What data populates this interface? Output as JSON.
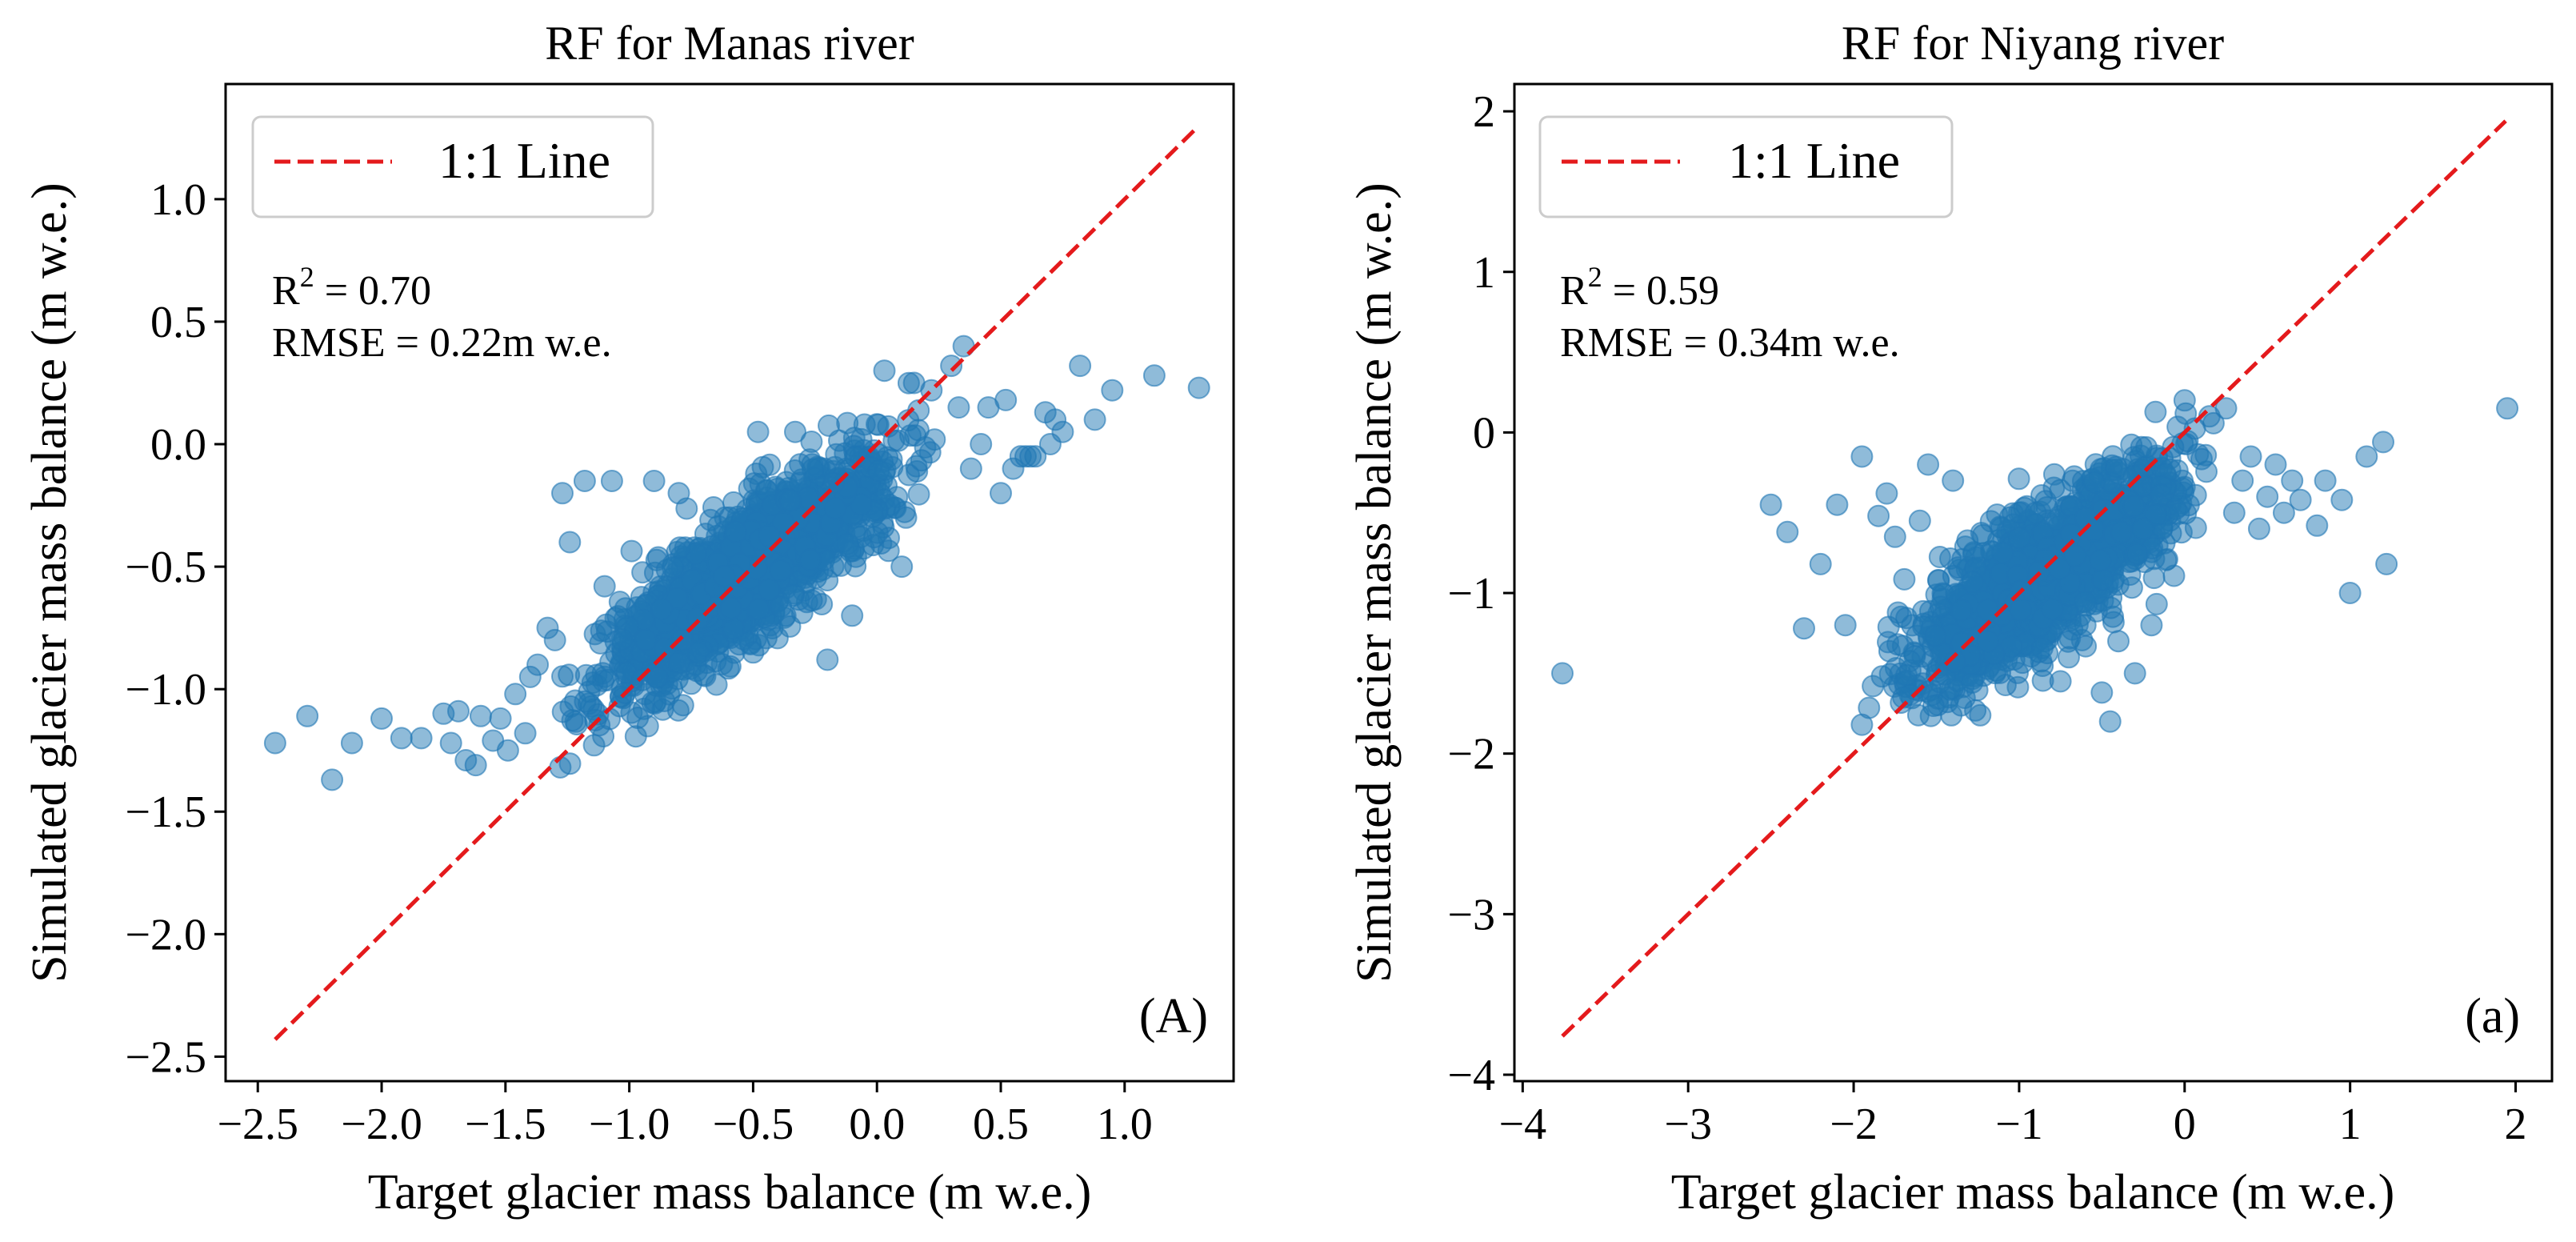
{
  "colors": {
    "points": "#1f77b4",
    "line": "#e41a1c",
    "axis": "#000000",
    "legend_edge": "#cccccc"
  },
  "chart_data": [
    {
      "type": "scatter",
      "title": "RF for Manas river",
      "xlabel": "Target glacier mass balance (m w.e.)",
      "ylabel": "Simulated glacier mass balance (m w.e.)",
      "xlim": [
        -2.63,
        1.44
      ],
      "ylim": [
        -2.6,
        1.47
      ],
      "xticks": [
        -2.5,
        -2.0,
        -1.5,
        -1.0,
        -0.5,
        0.0,
        0.5,
        1.0
      ],
      "xtick_labels": [
        "−2.5",
        "−2.0",
        "−1.5",
        "−1.0",
        "−0.5",
        "0.0",
        "0.5",
        "1.0"
      ],
      "yticks": [
        -2.5,
        -2.0,
        -1.5,
        -1.0,
        -0.5,
        0.0,
        0.5,
        1.0
      ],
      "ytick_labels": [
        "−2.5",
        "−2.0",
        "−1.5",
        "−1.0",
        "−0.5",
        "0.0",
        "0.5",
        "1.0"
      ],
      "legend": {
        "entries": [
          "1:1 Line"
        ],
        "position": "upper-left"
      },
      "stats": {
        "r2_prefix": "R",
        "r2_sup": "2",
        "r2_value": " = 0.70",
        "rmse": "RMSE = 0.22m w.e."
      },
      "panel_label": "(A)",
      "one_to_one_line": [
        [
          -2.43,
          -2.43
        ],
        [
          1.3,
          1.3
        ]
      ],
      "cloud": {
        "n": 1700,
        "xmin": -1.35,
        "xmax": 0.3,
        "slope": 0.72,
        "intercept": -0.15,
        "noise": 0.13,
        "seed": 11
      },
      "outliers": [
        [
          -2.43,
          -1.22
        ],
        [
          -2.3,
          -1.11
        ],
        [
          -2.2,
          -1.37
        ],
        [
          -2.12,
          -1.22
        ],
        [
          -2.0,
          -1.12
        ],
        [
          -1.92,
          -1.2
        ],
        [
          -1.84,
          -1.2
        ],
        [
          -1.75,
          -1.1
        ],
        [
          -1.72,
          -1.22
        ],
        [
          -1.69,
          -1.09
        ],
        [
          -1.66,
          -1.29
        ],
        [
          -1.62,
          -1.31
        ],
        [
          -1.6,
          -1.11
        ],
        [
          -1.55,
          -1.21
        ],
        [
          -1.52,
          -1.12
        ],
        [
          -1.49,
          -1.25
        ],
        [
          -1.46,
          -1.02
        ],
        [
          -1.42,
          -1.18
        ],
        [
          -1.4,
          -0.95
        ],
        [
          -1.37,
          -0.9
        ],
        [
          -1.33,
          -0.75
        ],
        [
          -1.3,
          -0.8
        ],
        [
          -1.27,
          -0.2
        ],
        [
          -1.24,
          -0.4
        ],
        [
          -1.18,
          -0.15
        ],
        [
          -1.1,
          -0.58
        ],
        [
          -1.07,
          -0.15
        ],
        [
          -0.9,
          -0.15
        ],
        [
          -0.8,
          -0.2
        ],
        [
          -0.5,
          -0.85
        ],
        [
          -0.48,
          0.05
        ],
        [
          -0.33,
          0.05
        ],
        [
          -0.2,
          -0.88
        ],
        [
          -0.1,
          -0.7
        ],
        [
          -0.05,
          0.08
        ],
        [
          0.03,
          0.3
        ],
        [
          0.1,
          -0.5
        ],
        [
          0.15,
          0.25
        ],
        [
          0.22,
          0.22
        ],
        [
          0.3,
          0.32
        ],
        [
          0.33,
          0.15
        ],
        [
          0.35,
          0.4
        ],
        [
          0.38,
          -0.1
        ],
        [
          0.42,
          0.0
        ],
        [
          0.45,
          0.15
        ],
        [
          0.5,
          -0.2
        ],
        [
          0.52,
          0.18
        ],
        [
          0.55,
          -0.1
        ],
        [
          0.58,
          -0.05
        ],
        [
          0.6,
          -0.05
        ],
        [
          0.62,
          -0.05
        ],
        [
          0.64,
          -0.05
        ],
        [
          0.68,
          0.13
        ],
        [
          0.7,
          0.0
        ],
        [
          0.72,
          0.1
        ],
        [
          0.75,
          0.05
        ],
        [
          0.82,
          0.32
        ],
        [
          0.88,
          0.1
        ],
        [
          0.95,
          0.22
        ],
        [
          1.12,
          0.28
        ],
        [
          1.3,
          0.23
        ]
      ]
    },
    {
      "type": "scatter",
      "title": "RF for Niyang river",
      "xlabel": "Target glacier mass balance (m w.e.)",
      "ylabel": "Simulated glacier mass balance (m w.e.)",
      "xlim": [
        -4.05,
        2.22
      ],
      "ylim": [
        -4.04,
        2.17
      ],
      "xticks": [
        -4,
        -3,
        -2,
        -1,
        0,
        1,
        2
      ],
      "xtick_labels": [
        "−4",
        "−3",
        "−2",
        "−1",
        "0",
        "1",
        "2"
      ],
      "yticks": [
        -4,
        -3,
        -2,
        -1,
        0,
        1,
        2
      ],
      "ytick_labels": [
        "−4",
        "−3",
        "−2",
        "−1",
        "0",
        "1",
        "2"
      ],
      "legend": {
        "entries": [
          "1:1 Line"
        ],
        "position": "upper-left"
      },
      "stats": {
        "r2_prefix": "R",
        "r2_sup": "2",
        "r2_value": " = 0.59",
        "rmse": "RMSE = 0.34m w.e."
      },
      "panel_label": "(a)",
      "one_to_one_line": [
        [
          -3.76,
          -3.76
        ],
        [
          1.94,
          1.94
        ]
      ],
      "cloud": {
        "n": 1700,
        "xmin": -2.0,
        "xmax": 0.3,
        "slope": 0.62,
        "intercept": -0.38,
        "noise": 0.2,
        "seed": 23
      },
      "outliers": [
        [
          -3.76,
          -1.5
        ],
        [
          -2.5,
          -0.45
        ],
        [
          -2.4,
          -0.62
        ],
        [
          -2.3,
          -1.22
        ],
        [
          -2.2,
          -0.82
        ],
        [
          -2.1,
          -0.45
        ],
        [
          -2.05,
          -1.2
        ],
        [
          -1.95,
          -0.15
        ],
        [
          -1.95,
          -1.82
        ],
        [
          -1.85,
          -0.52
        ],
        [
          -1.8,
          -0.38
        ],
        [
          -1.75,
          -0.65
        ],
        [
          -1.7,
          -1.65
        ],
        [
          -1.6,
          -0.55
        ],
        [
          -1.55,
          -0.2
        ],
        [
          -1.4,
          -0.3
        ],
        [
          -1.35,
          -1.7
        ],
        [
          -1.1,
          -0.75
        ],
        [
          -1.0,
          -0.5
        ],
        [
          -0.9,
          -0.5
        ],
        [
          -0.8,
          -1.1
        ],
        [
          -0.75,
          -1.55
        ],
        [
          -0.7,
          -1.4
        ],
        [
          -0.6,
          -1.2
        ],
        [
          -0.5,
          -1.62
        ],
        [
          -0.45,
          -1.8
        ],
        [
          -0.4,
          -1.3
        ],
        [
          -0.3,
          -1.5
        ],
        [
          -0.25,
          -0.6
        ],
        [
          -0.2,
          -1.2
        ],
        [
          0.0,
          0.2
        ],
        [
          0.15,
          0.1
        ],
        [
          0.25,
          0.15
        ],
        [
          0.3,
          -0.5
        ],
        [
          0.35,
          -0.3
        ],
        [
          0.4,
          -0.15
        ],
        [
          0.45,
          -0.6
        ],
        [
          0.5,
          -0.4
        ],
        [
          0.55,
          -0.2
        ],
        [
          0.6,
          -0.5
        ],
        [
          0.65,
          -0.3
        ],
        [
          0.7,
          -0.42
        ],
        [
          0.8,
          -0.58
        ],
        [
          0.85,
          -0.3
        ],
        [
          0.95,
          -0.42
        ],
        [
          1.0,
          -1.0
        ],
        [
          1.1,
          -0.15
        ],
        [
          1.2,
          -0.06
        ],
        [
          1.22,
          -0.82
        ],
        [
          1.95,
          0.15
        ]
      ]
    }
  ]
}
